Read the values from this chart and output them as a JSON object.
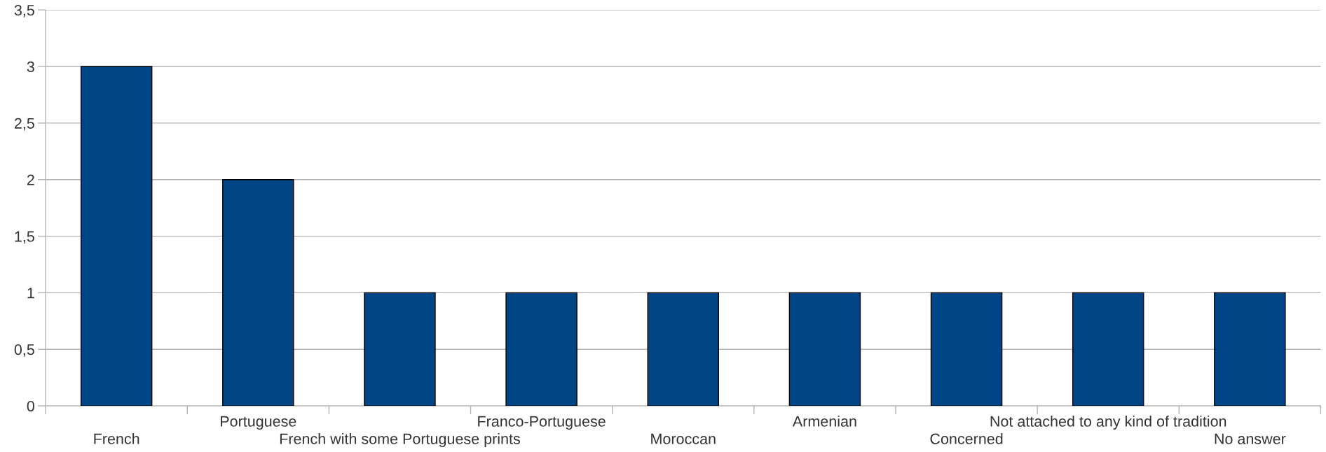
{
  "chart_data": {
    "type": "bar",
    "categories": [
      "French",
      "Portuguese",
      "French with some Portuguese prints",
      "Franco-Portuguese",
      "Moroccan",
      "Armenian",
      "Concerned",
      "Not attached to any kind of tradition",
      "No answer"
    ],
    "values": [
      3,
      2,
      1,
      1,
      1,
      1,
      1,
      1,
      1
    ],
    "color": "#004586",
    "ylim": [
      0,
      3.5
    ],
    "yticks": [
      0,
      {
        "value": 0.5,
        "label": "0,5"
      },
      1,
      {
        "value": 1.5,
        "label": "1,5"
      },
      2,
      {
        "value": 2.5,
        "label": "2,5"
      },
      3,
      {
        "value": 3.5,
        "label": "3,5"
      }
    ],
    "grid": "y"
  }
}
